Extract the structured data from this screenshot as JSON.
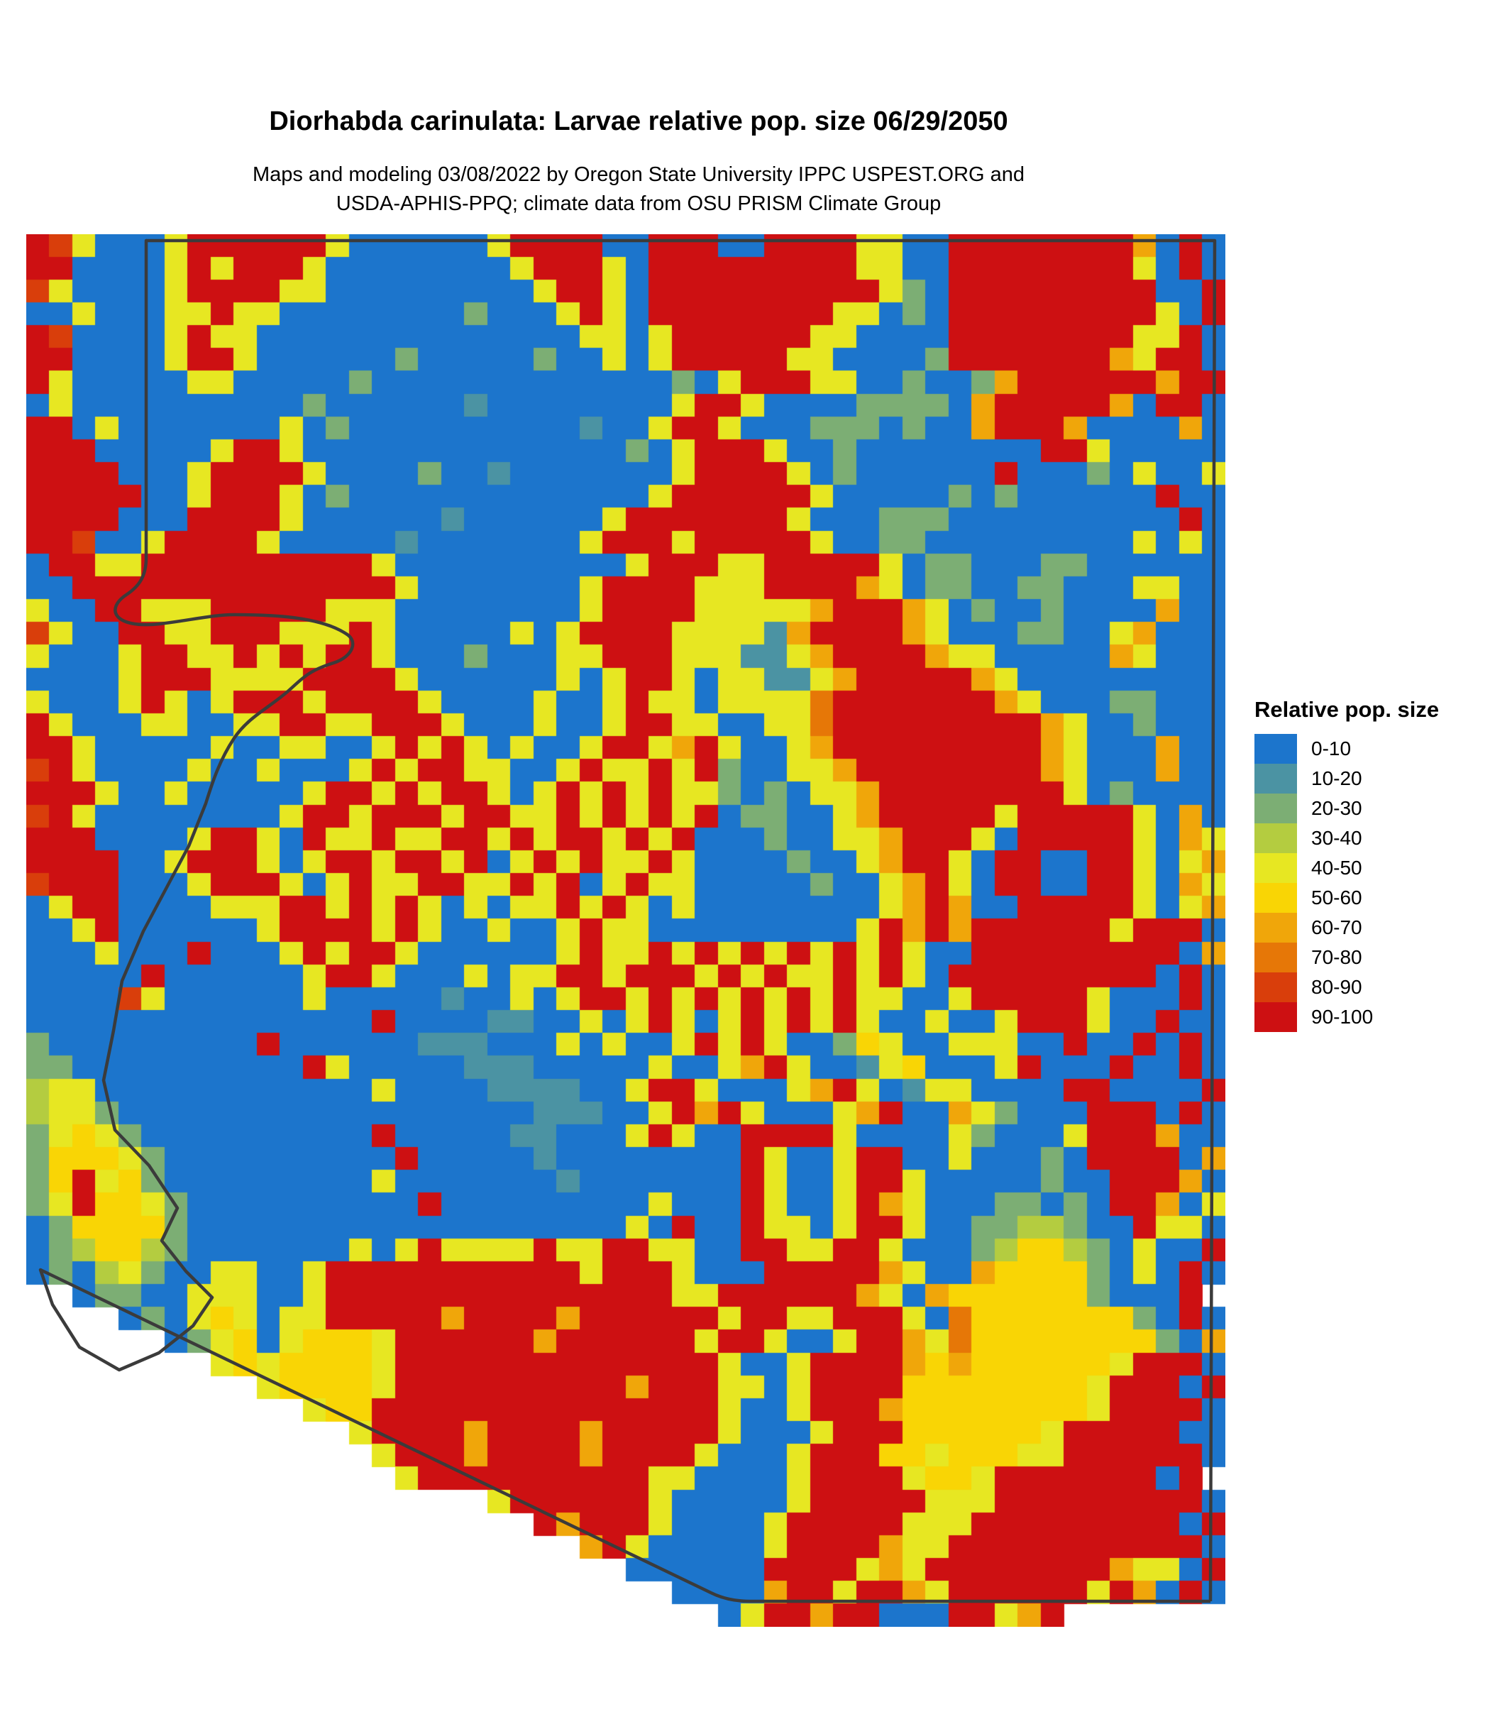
{
  "page": {
    "title": "Diorhabda carinulata: Larvae relative pop. size 06/29/2050",
    "subtitle_line1": "Maps and modeling 03/08/2022 by Oregon State University IPPC USPEST.ORG and",
    "subtitle_line2": "USDA-APHIS-PPQ; climate data from OSU PRISM Climate Group"
  },
  "legend": {
    "title": "Relative pop. size",
    "entries": [
      {
        "label": "0-10",
        "color": "#1c75cc"
      },
      {
        "label": "10-20",
        "color": "#4b93a3"
      },
      {
        "label": "20-30",
        "color": "#7cae74"
      },
      {
        "label": "30-40",
        "color": "#b4cc40"
      },
      {
        "label": "40-50",
        "color": "#e7e722"
      },
      {
        "label": "50-60",
        "color": "#f9d505"
      },
      {
        "label": "60-70",
        "color": "#f0a60a"
      },
      {
        "label": "70-80",
        "color": "#e67707"
      },
      {
        "label": "80-90",
        "color": "#d93e0b"
      },
      {
        "label": "90-100",
        "color": "#cd1012"
      }
    ]
  },
  "map": {
    "boundary_color": "#3b3b3b",
    "background": "#ffffff",
    "cols": 52,
    "rows": 61,
    "palette": {
      ".": "#1c75cc",
      "t": "#4b93a3",
      "g": "#7cae74",
      "l": "#b4cc40",
      "y": "#e7e722",
      "Y": "#f9d505",
      "o": "#f0a60a",
      "O": "#e67707",
      "r": "#d93e0b",
      "R": "#cd1012"
    },
    "grid_rows": [
      "Rry...yRRRRRRy......yRRRR..RRR..RRRRyy..RRRRRRRRo.R.",
      "RR....yRyRRRy........yRRRy.RRRRRRRRRyy..RRRRRRRRy.R.",
      "ry....yRRRRyy.........yRRy.RRRRRRRRRRyg.RRRRRRRRR..R",
      "..y...yyRyy........g...yRy.RRRRRRRRyy.g.RRRRRRRRRy.R",
      "Rr....yRyy..............yy.yRRRRRRyy....RRRRRRRRyyR.",
      "RR....yRRy......g.....g..y.yRRRRRyy....gRRRRRRRoyRR.",
      "Ry.....yy.....g.............g.yRRRyy..g..goRRRRRRoRR",
      ".y..........g......t........yRRy....gggg.oRRRRRo.RR.",
      "RR.y.......y.g..........t..yRRy...ggg.g..oRRRo....o.",
      "RRR.....yRRy..............g.yRRRy..g........RRy.....",
      "RRRR...yRRRRy....g..t.......yRRRRy.g......R...g.y..y",
      "RRRRR..yRRRy.g.............yRRRRRRy.....g.g......R..",
      "RRRR...RRRRy......t......yRRRRRRRy...ggg..........R.",
      "RRr..yRRRRy.....t.......yRRRyRRRRRy..gg.........y.y.",
      ".RRyyRRRRRRRRRRy..........yRRRyyRRRRRy.gg...gg......",
      "..RRRRRRRRRRRRRRy.......yRRRRyyyRRRRoy.gg..gg...yy..",
      "y..RRyyyRRRRRyyy........yRRRRyyyyyoRRRoy.g..g....o..",
      "ry..RRyyRRRyyyRy.....y.yRRRRyyyytoRRRRoy...gg..yo...",
      "y...yRRyyRyRyRRy...g...yyRRRyyyttyoRRRRoyy.....oy...",
      "....yRRRyyyyRRRRy......y.yRRy.yyttyoRRRRRoy.........",
      "y...yRy.yRRRyRRRRy....y..yRyy.yyyyORRRRRRRoy...gg...",
      "Ry...yy..yyRRyyRRRy...y..yRRyy..yyORRRRRRRRRoy..g...",
      "RRy.....y..yy..yRyRy.y..yRRyoRy..yoRRRRRRRRRoy...o..",
      "rRy....y..y...yRyRRyy..yRyyRyRg..yyoRRRRRRRRoy...o..",
      "RRRy..y.....yRRyRyRRy.yRyRyRyyg.g.yyoRRRRRRRRy.g....",
      "rRy........yRRyRRRyRRyyRyRyRyR.gg..yoRRRRRyRRRRRy.o.",
      "RRR....yRRy.RyyRyyRRyRyRRyRyR...g..yyoRRRy.RRRRRy.oy",
      "RRRR..yRRRy.yRRyRRyR.yRyRyyRy....g..yoRRy.RR..RRy.yo",
      "rRRR...yRRRy.yRyyRRyyRyR.yRyy.....g..yoRy.RR..RRy.oy",
      ".yRR....yyyRRyRyRy.y.yyRyRy.y........yoRo..RRRRRy.yo",
      "..yR......yRRRRyRy..y..yRyy.........yRoRoRRRRRRyRRR.",
      "...y...R...yRyRRy......yRyyRyRyRyRyRyRy..RRRRRRRRR.o",
      ".....R......yRRy...y.yyRRyRRRyRyRyyRyRy.RRRRRRRRR.R.",
      "....ry......y.....t..y.yRRyRyRyRyRyRyy..yRRRRRy...R.",
      "...............R....tt..y.yRy.yRyRyRy..y..yRRRy..R..",
      "g.........R......ttt...y.y..yRyRy..gYy..yyy..R..R.R.",
      "gg..........Ry.....ttt.....y..yoRy..tyY...yR...R..R.",
      "lyy............y....tttt..yRRy...yoRy.tyy....RR....R",
      "lyyg..................ttt..yRoRy...yoR..oyg...RRR.R.",
      "gyYyg..........R.....tt...yRy..RRRRy....yg...yRRRo..",
      "gYYYyg..........R.....t........Ry..yRR..y...g.RRRR.o",
      "gYRyYg.........y.......t.......Ry..yRRy.....g..RRRo.",
      "gyRYYyg..........R.........y...Ry..yRoy...gg.g.RRo.y",
      ".gYYYYg...................y.R..Ryy.yRRy..ggllg..Ryy.",
      ".glYYlg.......y.yRyyyyRyyRRyy..RRyyRRy...glYYlg.y..R",
      ".g.lyg..yy..yRRRRRRRRRRRyRRRy...RRRRRoy..oYYYYg.y.R.",
      "  .gg..yyy..yRRRRRRRRRRRRRRRyyRRRRRRoy.oYYYYYYg...R",
      "    .g.yYy.yyRRRRRoRRRRoRRRRRRyRRyyRRRy.OYYYYYYYg.R.",
      "      .gyY.yYYYyRRRRRRoRRRRRRyRRy..yRRoyOYYYYYYYYg.o",
      "        yYyYYYYyRRRRRRRRRRRRRRy..yRRRRoYoYYYYYYyRRR.",
      "          yYYYYyRRRRRRRRRRoRRRyy.yRRRRYYYYYYYYyRRR.R",
      "            yYYRRRRRRRRRRRRRRRy..yRRRoYYYYYYYYyRRRR.",
      "              yRRRRoRRRRoRRRRRy...yRRRYYYYYYyRRRRR..",
      "               yRRRoRRRRoRRRRy...yRRRYYyYYYyyRRRRRR.",
      "                yRRRRRRRRRRyy....yRRRRyYYyRRRRRRR.R",
      "                    yRRRRRRy.....yRRRRRyyyRRRRRRRRR.",
      "                      RoRRRy....yRRRRRyyyRRRRRRRRR.R",
      "                        oRy.....yRRRRoyyRRRRRRRRRRR.",
      "                          ......RRRRyoyRRRRRRRRoyy.R",
      "                            ....oRRyRRoyRRRRRRyRo.R.",
      "                              .yRRoRR...RRyoR       "
    ]
  }
}
